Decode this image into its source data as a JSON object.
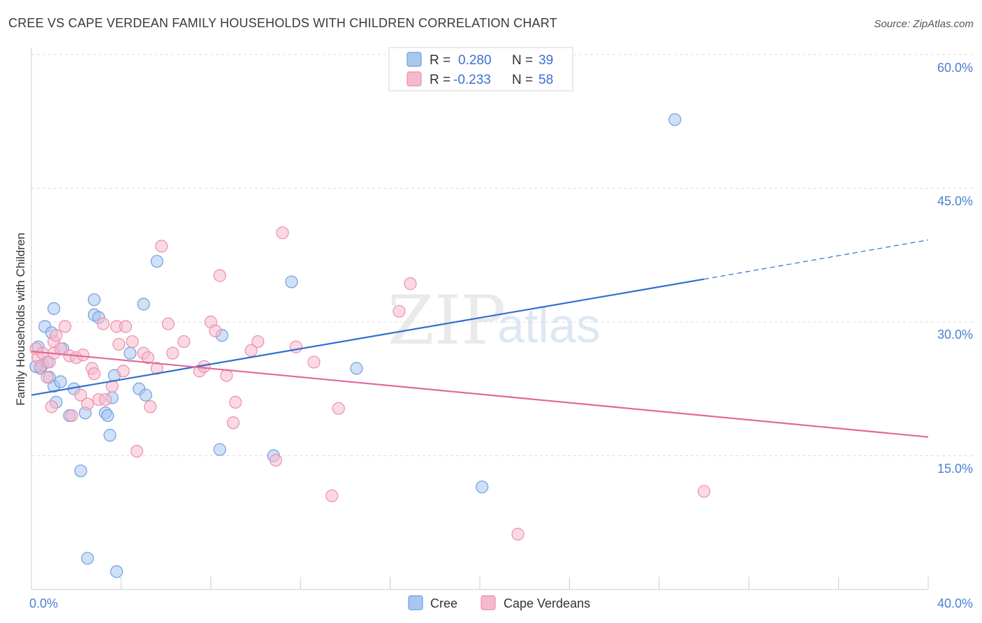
{
  "title": "CREE VS CAPE VERDEAN FAMILY HOUSEHOLDS WITH CHILDREN CORRELATION CHART",
  "source": "Source: ZipAtlas.com",
  "colors": {
    "cree_fill": "#a9c6ef",
    "cree_stroke": "#6f9fe0",
    "cree_line": "#2e6fcf",
    "cape_fill": "#f6b9cc",
    "cape_stroke": "#ec8fad",
    "cape_line": "#e0679a",
    "tick_label": "#4a7fd4",
    "grid": "#dddddd"
  },
  "chart_data": {
    "type": "scatter",
    "title": "CREE VS CAPE VERDEAN FAMILY HOUSEHOLDS WITH CHILDREN CORRELATION CHART",
    "xlabel": "",
    "ylabel": "Family Households with Children",
    "xlim": [
      0,
      40
    ],
    "ylim": [
      0,
      60
    ],
    "x_tick_labels": [
      "0.0%",
      "40.0%"
    ],
    "y_ticks": [
      15,
      30,
      45,
      60
    ],
    "y_tick_labels": [
      "15.0%",
      "30.0%",
      "45.0%",
      "60.0%"
    ],
    "grid": true,
    "legend": {
      "position": "top-center",
      "entries": [
        {
          "series": "Cree",
          "r_label": "R =",
          "r_value": "0.280",
          "n_label": "N =",
          "n_value": "39"
        },
        {
          "series": "Cape Verdeans",
          "r_label": "R =",
          "r_value": "-0.233",
          "n_label": "N =",
          "n_value": "58"
        }
      ]
    },
    "bottom_legend": [
      "Cree",
      "Cape Verdeans"
    ],
    "watermark": {
      "zip": "ZIP",
      "atlas": "atlas"
    },
    "series": [
      {
        "name": "Cree",
        "points": [
          [
            0.3,
            27.2
          ],
          [
            0.4,
            24.8
          ],
          [
            0.5,
            25.2
          ],
          [
            0.6,
            29.5
          ],
          [
            0.7,
            25.5
          ],
          [
            0.8,
            23.8
          ],
          [
            0.9,
            28.8
          ],
          [
            1.0,
            31.5
          ],
          [
            1.0,
            22.8
          ],
          [
            1.1,
            21.0
          ],
          [
            1.3,
            23.3
          ],
          [
            1.4,
            27.0
          ],
          [
            1.7,
            19.5
          ],
          [
            1.9,
            22.5
          ],
          [
            2.2,
            13.3
          ],
          [
            2.4,
            19.8
          ],
          [
            2.5,
            3.5
          ],
          [
            2.8,
            30.8
          ],
          [
            2.8,
            32.5
          ],
          [
            3.0,
            30.5
          ],
          [
            3.3,
            19.8
          ],
          [
            3.4,
            19.5
          ],
          [
            3.5,
            17.3
          ],
          [
            3.6,
            21.5
          ],
          [
            3.7,
            24.0
          ],
          [
            3.8,
            2.0
          ],
          [
            4.4,
            26.5
          ],
          [
            4.8,
            22.5
          ],
          [
            5.0,
            32.0
          ],
          [
            5.1,
            21.8
          ],
          [
            5.6,
            36.8
          ],
          [
            8.4,
            15.7
          ],
          [
            8.5,
            28.5
          ],
          [
            10.8,
            15.0
          ],
          [
            11.6,
            34.5
          ],
          [
            14.5,
            24.8
          ],
          [
            20.1,
            11.5
          ],
          [
            28.7,
            52.7
          ],
          [
            0.2,
            25.0
          ]
        ]
      },
      {
        "name": "Cape Verdeans",
        "points": [
          [
            0.2,
            27.0
          ],
          [
            0.3,
            26.0
          ],
          [
            0.4,
            25.0
          ],
          [
            0.5,
            26.5
          ],
          [
            0.7,
            23.8
          ],
          [
            0.8,
            25.5
          ],
          [
            0.9,
            20.5
          ],
          [
            1.0,
            27.8
          ],
          [
            1.0,
            26.5
          ],
          [
            1.1,
            28.5
          ],
          [
            1.3,
            27.0
          ],
          [
            1.5,
            29.5
          ],
          [
            1.7,
            26.2
          ],
          [
            1.8,
            19.5
          ],
          [
            2.0,
            26.0
          ],
          [
            2.2,
            21.8
          ],
          [
            2.3,
            26.3
          ],
          [
            2.5,
            20.8
          ],
          [
            2.7,
            24.8
          ],
          [
            2.8,
            24.2
          ],
          [
            3.0,
            21.3
          ],
          [
            3.2,
            29.8
          ],
          [
            3.3,
            21.3
          ],
          [
            3.6,
            22.8
          ],
          [
            3.8,
            29.5
          ],
          [
            3.9,
            27.5
          ],
          [
            4.1,
            24.5
          ],
          [
            4.2,
            29.5
          ],
          [
            4.5,
            27.8
          ],
          [
            4.7,
            15.5
          ],
          [
            5.0,
            26.5
          ],
          [
            5.2,
            26.0
          ],
          [
            5.3,
            20.5
          ],
          [
            5.6,
            24.8
          ],
          [
            5.8,
            38.5
          ],
          [
            6.1,
            29.8
          ],
          [
            6.3,
            26.5
          ],
          [
            6.8,
            27.8
          ],
          [
            7.5,
            24.5
          ],
          [
            7.7,
            25.0
          ],
          [
            8.0,
            30.0
          ],
          [
            8.2,
            29.0
          ],
          [
            8.4,
            35.2
          ],
          [
            8.7,
            24.0
          ],
          [
            9.0,
            18.7
          ],
          [
            9.1,
            21.0
          ],
          [
            9.8,
            26.8
          ],
          [
            10.1,
            27.8
          ],
          [
            10.9,
            14.5
          ],
          [
            11.2,
            40.0
          ],
          [
            11.8,
            27.2
          ],
          [
            12.6,
            25.5
          ],
          [
            13.4,
            10.5
          ],
          [
            13.7,
            20.3
          ],
          [
            16.4,
            31.2
          ],
          [
            16.9,
            34.3
          ],
          [
            21.7,
            6.2
          ],
          [
            30.0,
            11.0
          ]
        ]
      }
    ],
    "trend_lines": [
      {
        "series": "Cree",
        "solid_from": [
          0,
          21.8
        ],
        "solid_to": [
          30,
          34.8
        ],
        "dashed_to": [
          40,
          39.2
        ]
      },
      {
        "series": "Cape Verdeans",
        "solid_from": [
          0,
          26.7
        ],
        "solid_to": [
          40,
          17.1
        ]
      }
    ]
  }
}
